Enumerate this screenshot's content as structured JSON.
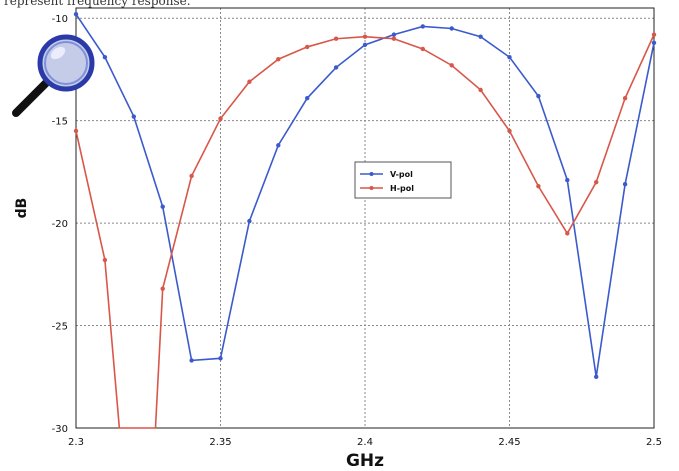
{
  "caption": "represent frequency response.",
  "colors": {
    "v_pol": "#3b5bcc",
    "h_pol": "#d8574a",
    "grid": "#8a8a8a"
  },
  "icon": "magnifier-icon",
  "chart_data": {
    "type": "line",
    "xlabel": "GHz",
    "ylabel": "dB",
    "xlim": [
      2.3,
      2.5
    ],
    "ylim": [
      -30,
      -9.5
    ],
    "xticks": [
      "2.3",
      "2.35",
      "2.4",
      "2.45",
      "2.5"
    ],
    "yticks": [
      "-10",
      "-15",
      "-20",
      "-25",
      "-30"
    ],
    "grid": true,
    "legend_position": "center",
    "series": [
      {
        "name": "V-pol",
        "color": "#3b5bcc",
        "x": [
          2.3,
          2.31,
          2.32,
          2.33,
          2.34,
          2.35,
          2.36,
          2.37,
          2.38,
          2.39,
          2.4,
          2.41,
          2.42,
          2.43,
          2.44,
          2.45,
          2.46,
          2.47,
          2.48,
          2.49,
          2.5
        ],
        "y": [
          -9.8,
          -11.9,
          -14.8,
          -19.2,
          -26.7,
          -26.6,
          -19.9,
          -16.2,
          -13.9,
          -12.4,
          -11.3,
          -10.8,
          -10.4,
          -10.5,
          -10.9,
          -11.9,
          -13.8,
          -17.9,
          -27.5,
          -18.1,
          -11.2
        ]
      },
      {
        "name": "H-pol",
        "color": "#d8574a",
        "x": [
          2.3,
          2.31,
          2.315,
          2.3275,
          2.33,
          2.34,
          2.35,
          2.36,
          2.37,
          2.38,
          2.39,
          2.4,
          2.41,
          2.42,
          2.43,
          2.44,
          2.45,
          2.46,
          2.47,
          2.48,
          2.49,
          2.5
        ],
        "y": [
          -15.5,
          -21.8,
          -30.0,
          -30.0,
          -23.2,
          -17.7,
          -14.9,
          -13.1,
          -12.0,
          -11.4,
          -11.0,
          -10.9,
          -11.0,
          -11.5,
          -12.3,
          -13.5,
          -15.5,
          -18.2,
          -20.5,
          -18.0,
          -13.9,
          -10.8
        ]
      }
    ]
  }
}
